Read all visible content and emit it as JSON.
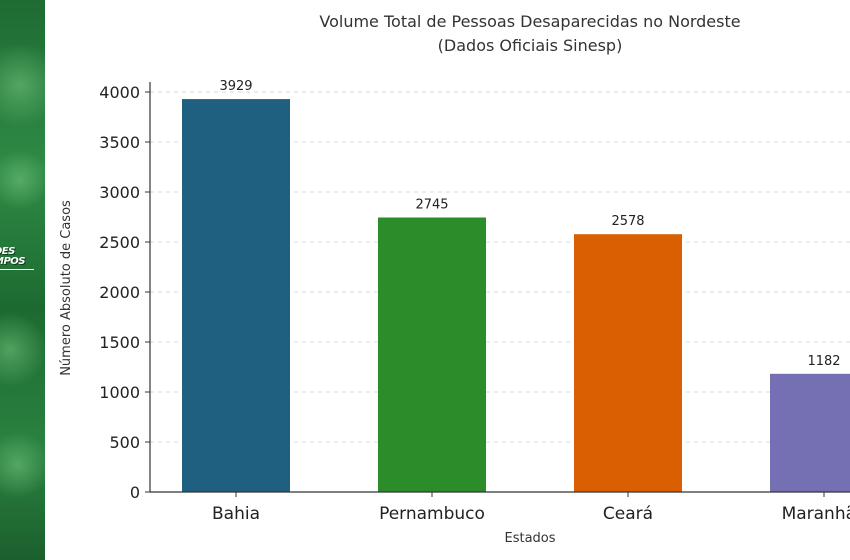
{
  "logo": {
    "line1": "DES",
    "line2": "MPOS"
  },
  "chart_data": {
    "type": "bar",
    "title": "Volume Total de Pessoas Desaparecidas no Nordeste",
    "subtitle": "(Dados Oficiais Sinesp)",
    "xlabel": "Estados",
    "ylabel": "Número Absoluto de Casos",
    "categories": [
      "Bahia",
      "Pernambuco",
      "Ceará",
      "Maranhão"
    ],
    "values": [
      3929,
      2745,
      2578,
      1182
    ],
    "colors": [
      "#1f5f7f",
      "#2a8d2a",
      "#d95f02",
      "#7570b3"
    ],
    "ylim": [
      0,
      4100
    ],
    "yticks": [
      0,
      500,
      1000,
      1500,
      2000,
      2500,
      3000,
      3500,
      4000
    ],
    "grid": "horizontal dashed",
    "data_labels": true
  }
}
